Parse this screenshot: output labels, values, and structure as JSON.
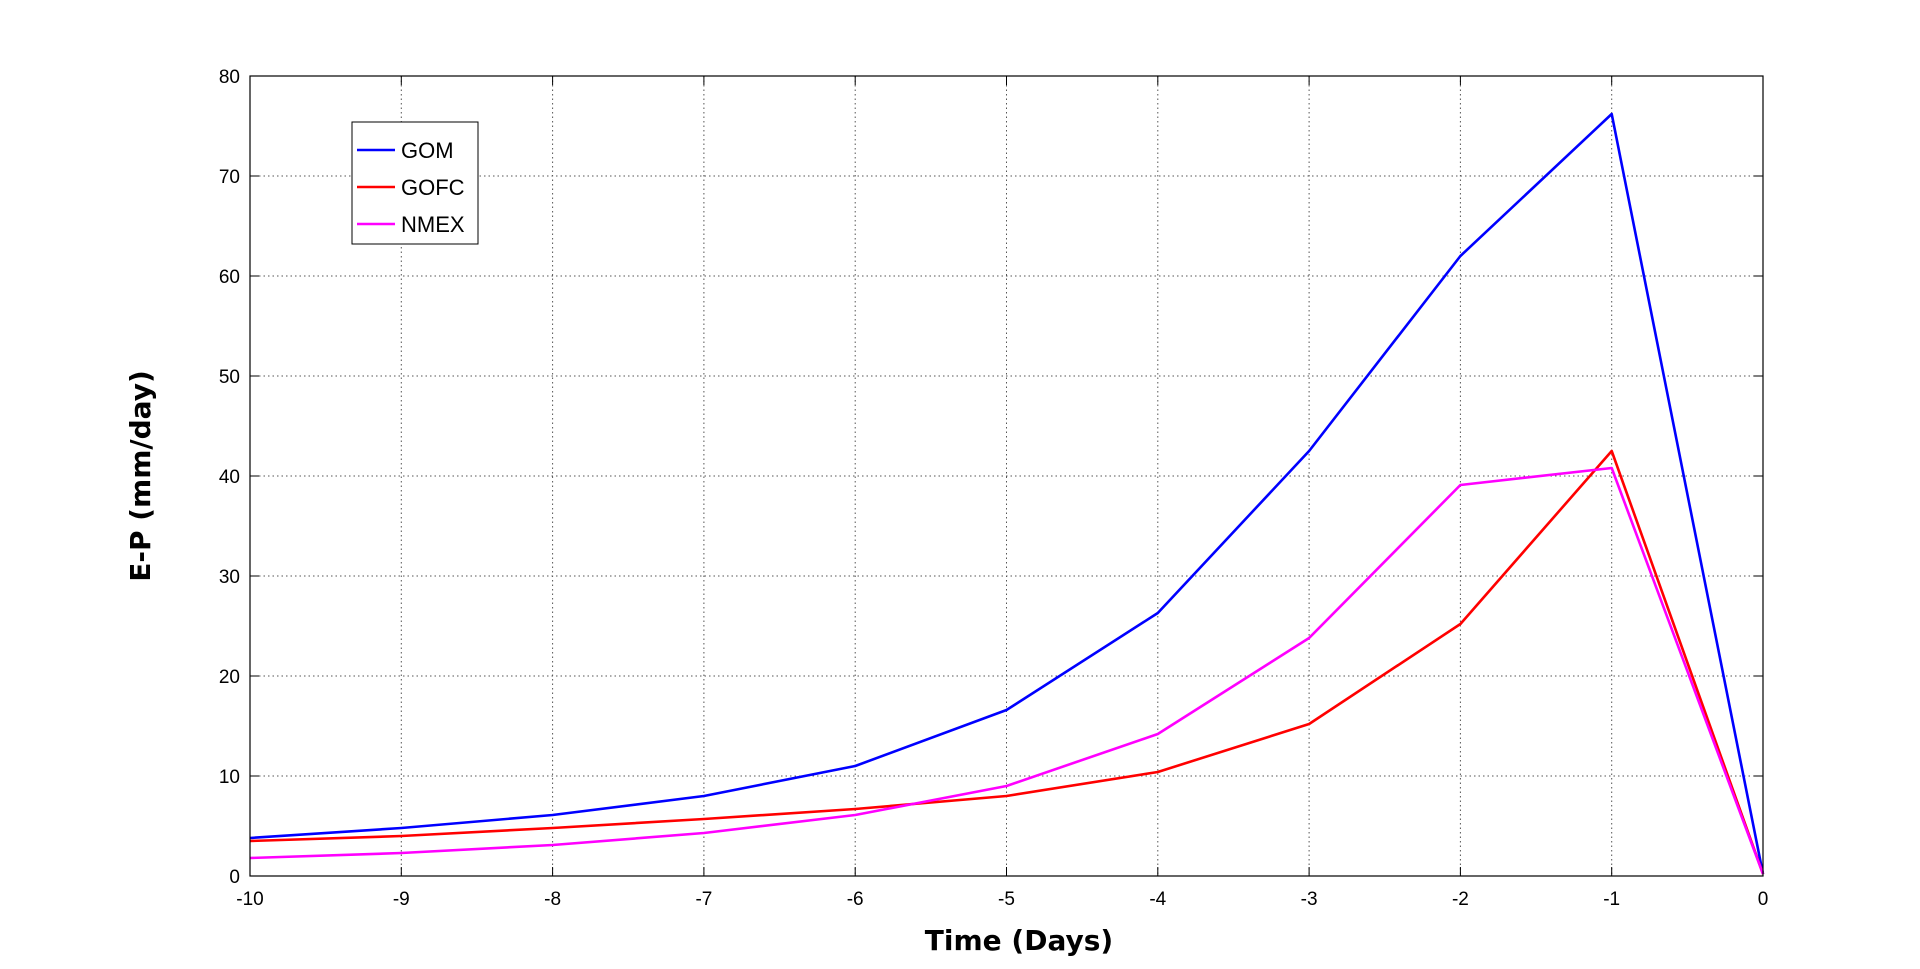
{
  "chart_data": {
    "type": "line",
    "title": "",
    "xlabel": "Time (Days)",
    "ylabel": "E-P (mm/day)",
    "x": [
      -10,
      -9,
      -8,
      -7,
      -6,
      -5,
      -4,
      -3,
      -2,
      -1,
      0
    ],
    "xlim": [
      -10,
      0
    ],
    "ylim": [
      0,
      80
    ],
    "xticks": [
      -10,
      -9,
      -8,
      -7,
      -6,
      -5,
      -4,
      -3,
      -2,
      -1,
      0
    ],
    "yticks": [
      0,
      10,
      20,
      30,
      40,
      50,
      60,
      70,
      80
    ],
    "grid": true,
    "legend_position": "top-left",
    "series": [
      {
        "name": "GOM",
        "color": "#0000ff",
        "values": [
          3.8,
          4.8,
          6.1,
          8.0,
          11.0,
          16.6,
          26.3,
          42.5,
          62.0,
          76.2,
          0.2
        ]
      },
      {
        "name": "GOFC",
        "color": "#ff0000",
        "values": [
          3.5,
          4.0,
          4.8,
          5.7,
          6.7,
          8.0,
          10.4,
          15.2,
          25.2,
          42.5,
          0.2
        ]
      },
      {
        "name": "NMEX",
        "color": "#ff00ff",
        "values": [
          1.8,
          2.3,
          3.1,
          4.3,
          6.1,
          9.0,
          14.2,
          23.8,
          39.1,
          40.8,
          0.2
        ]
      }
    ]
  }
}
